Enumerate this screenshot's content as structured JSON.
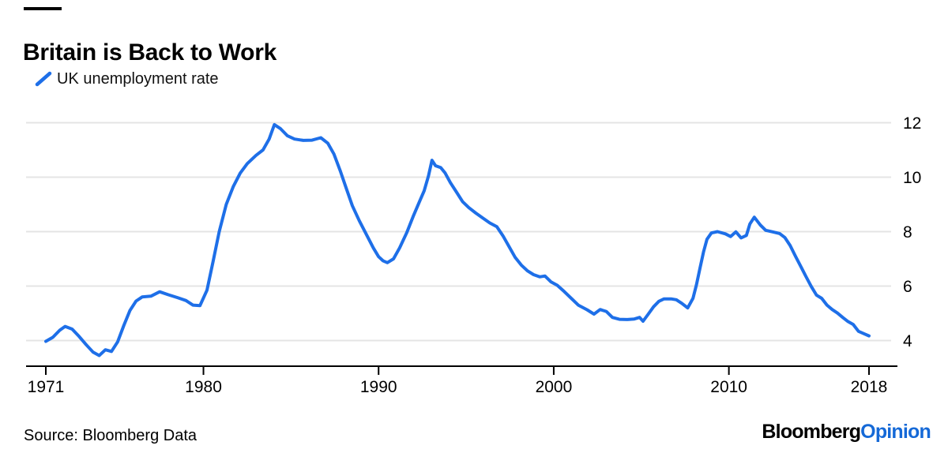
{
  "header": {
    "title": "Britain is Back to Work",
    "legend_label": "UK unemployment rate"
  },
  "footer": {
    "source": "Source: Bloomberg Data",
    "logo_black": "Bloomberg",
    "logo_blue": "Opinion"
  },
  "colors": {
    "line": "#1e6fe8",
    "logo_blue": "#1569d7",
    "grid": "#e4e4e4",
    "axis": "#000000",
    "text": "#000000"
  },
  "chart_data": {
    "type": "line",
    "title": "Britain is Back to Work",
    "series_name": "UK unemployment rate",
    "xlabel": "",
    "ylabel": "",
    "x_ticks": [
      1971,
      1980,
      1990,
      2000,
      2010,
      2018
    ],
    "x_tick_labels": [
      "1971",
      "1980",
      "1990",
      "2000",
      "2010",
      "2018"
    ],
    "y_ticks": [
      4,
      6,
      8,
      10,
      12
    ],
    "y_tick_labels": [
      "4",
      "6",
      "8",
      "10",
      "12"
    ],
    "xlim": [
      1971,
      2018
    ],
    "ylim": [
      3.0,
      12.2
    ],
    "grid": "horizontal",
    "legend_position": "top-left",
    "y_axis_side": "right",
    "points": [
      [
        1971.0,
        3.97
      ],
      [
        1971.4,
        4.12
      ],
      [
        1971.8,
        4.38
      ],
      [
        1972.1,
        4.52
      ],
      [
        1972.5,
        4.42
      ],
      [
        1972.9,
        4.15
      ],
      [
        1973.3,
        3.85
      ],
      [
        1973.7,
        3.57
      ],
      [
        1974.05,
        3.45
      ],
      [
        1974.4,
        3.66
      ],
      [
        1974.75,
        3.6
      ],
      [
        1975.1,
        3.95
      ],
      [
        1975.45,
        4.55
      ],
      [
        1975.8,
        5.1
      ],
      [
        1976.15,
        5.45
      ],
      [
        1976.5,
        5.6
      ],
      [
        1977.0,
        5.63
      ],
      [
        1977.5,
        5.79
      ],
      [
        1978.0,
        5.68
      ],
      [
        1978.5,
        5.58
      ],
      [
        1979.0,
        5.47
      ],
      [
        1979.4,
        5.3
      ],
      [
        1979.8,
        5.28
      ],
      [
        1980.2,
        5.85
      ],
      [
        1980.55,
        6.9
      ],
      [
        1980.9,
        8.0
      ],
      [
        1981.3,
        9.0
      ],
      [
        1981.7,
        9.65
      ],
      [
        1982.1,
        10.15
      ],
      [
        1982.5,
        10.5
      ],
      [
        1983.0,
        10.8
      ],
      [
        1983.4,
        11.0
      ],
      [
        1983.75,
        11.4
      ],
      [
        1984.05,
        11.93
      ],
      [
        1984.4,
        11.78
      ],
      [
        1984.8,
        11.52
      ],
      [
        1985.2,
        11.4
      ],
      [
        1985.7,
        11.35
      ],
      [
        1986.2,
        11.36
      ],
      [
        1986.7,
        11.45
      ],
      [
        1987.1,
        11.25
      ],
      [
        1987.45,
        10.85
      ],
      [
        1987.8,
        10.25
      ],
      [
        1988.15,
        9.6
      ],
      [
        1988.5,
        8.95
      ],
      [
        1988.9,
        8.4
      ],
      [
        1989.3,
        7.9
      ],
      [
        1989.7,
        7.4
      ],
      [
        1990.0,
        7.08
      ],
      [
        1990.25,
        6.93
      ],
      [
        1990.5,
        6.86
      ],
      [
        1990.85,
        7.0
      ],
      [
        1991.2,
        7.4
      ],
      [
        1991.6,
        7.95
      ],
      [
        1992.0,
        8.6
      ],
      [
        1992.3,
        9.05
      ],
      [
        1992.6,
        9.5
      ],
      [
        1992.85,
        10.05
      ],
      [
        1993.05,
        10.62
      ],
      [
        1993.25,
        10.42
      ],
      [
        1993.55,
        10.35
      ],
      [
        1993.8,
        10.15
      ],
      [
        1994.1,
        9.8
      ],
      [
        1994.45,
        9.45
      ],
      [
        1994.8,
        9.1
      ],
      [
        1995.15,
        8.88
      ],
      [
        1995.55,
        8.68
      ],
      [
        1995.95,
        8.5
      ],
      [
        1996.35,
        8.32
      ],
      [
        1996.75,
        8.18
      ],
      [
        1997.1,
        7.85
      ],
      [
        1997.45,
        7.45
      ],
      [
        1997.8,
        7.05
      ],
      [
        1998.15,
        6.77
      ],
      [
        1998.5,
        6.56
      ],
      [
        1998.85,
        6.42
      ],
      [
        1999.2,
        6.34
      ],
      [
        1999.5,
        6.37
      ],
      [
        1999.85,
        6.15
      ],
      [
        2000.2,
        6.03
      ],
      [
        2000.6,
        5.8
      ],
      [
        2001.0,
        5.55
      ],
      [
        2001.4,
        5.3
      ],
      [
        2001.9,
        5.13
      ],
      [
        2002.3,
        4.97
      ],
      [
        2002.65,
        5.14
      ],
      [
        2003.0,
        5.07
      ],
      [
        2003.35,
        4.85
      ],
      [
        2003.75,
        4.78
      ],
      [
        2004.2,
        4.77
      ],
      [
        2004.6,
        4.79
      ],
      [
        2004.9,
        4.85
      ],
      [
        2005.1,
        4.71
      ],
      [
        2005.4,
        4.97
      ],
      [
        2005.7,
        5.24
      ],
      [
        2006.0,
        5.44
      ],
      [
        2006.3,
        5.53
      ],
      [
        2006.7,
        5.53
      ],
      [
        2007.0,
        5.5
      ],
      [
        2007.3,
        5.37
      ],
      [
        2007.65,
        5.2
      ],
      [
        2007.95,
        5.55
      ],
      [
        2008.15,
        6.05
      ],
      [
        2008.35,
        6.65
      ],
      [
        2008.55,
        7.25
      ],
      [
        2008.75,
        7.72
      ],
      [
        2009.0,
        7.95
      ],
      [
        2009.35,
        8.0
      ],
      [
        2009.8,
        7.92
      ],
      [
        2010.1,
        7.82
      ],
      [
        2010.4,
        7.99
      ],
      [
        2010.7,
        7.77
      ],
      [
        2011.0,
        7.86
      ],
      [
        2011.2,
        8.28
      ],
      [
        2011.45,
        8.53
      ],
      [
        2011.8,
        8.24
      ],
      [
        2012.1,
        8.05
      ],
      [
        2012.5,
        7.99
      ],
      [
        2012.9,
        7.93
      ],
      [
        2013.2,
        7.78
      ],
      [
        2013.5,
        7.49
      ],
      [
        2013.8,
        7.1
      ],
      [
        2014.1,
        6.73
      ],
      [
        2014.4,
        6.35
      ],
      [
        2014.7,
        5.99
      ],
      [
        2015.0,
        5.67
      ],
      [
        2015.3,
        5.55
      ],
      [
        2015.6,
        5.3
      ],
      [
        2015.9,
        5.14
      ],
      [
        2016.2,
        5.01
      ],
      [
        2016.5,
        4.85
      ],
      [
        2016.8,
        4.7
      ],
      [
        2017.1,
        4.59
      ],
      [
        2017.4,
        4.34
      ],
      [
        2017.75,
        4.24
      ],
      [
        2018.0,
        4.17
      ]
    ]
  }
}
